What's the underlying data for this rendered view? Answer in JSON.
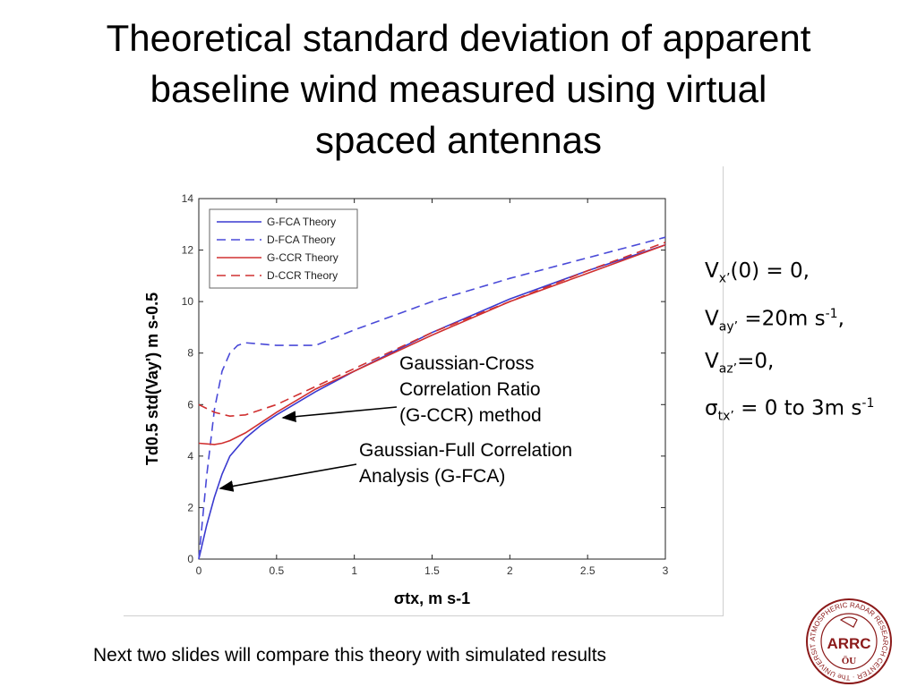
{
  "slide": {
    "title": "Theoretical standard deviation of apparent\nbaseline wind measured using virtual\nspaced antennas",
    "footnote": "Next two slides will compare this theory with simulated results"
  },
  "params": {
    "line1": {
      "base": "V",
      "sub": "x’",
      "rest": "(0) = 0,"
    },
    "line2": {
      "base": "V",
      "sub": "ay’",
      "rest": " =20m s",
      "sup": "-1",
      "tail": ","
    },
    "line3": {
      "base": "V",
      "sub": "az’",
      "rest": "=0,"
    },
    "line4": {
      "base": "σ",
      "sub": "tx’",
      "rest": " = 0 to 3m s",
      "sup": "-1"
    }
  },
  "annotations": {
    "gccr": "Gaussian-Cross\nCorrelation Ratio\n(G-CCR) method",
    "gfca": "Gaussian-Full Correlation\n Analysis (G-FCA)"
  },
  "logo": {
    "ring_text": "ATMOSPHERIC RADAR RESEARCH CENTER · The UNIVERSITY of OKLAHOMA ·",
    "center_text": "ARRC",
    "color": "#8b1a1a"
  },
  "chart_data": {
    "type": "line",
    "xlabel": "σtx, m s-1",
    "ylabel": "Td0.5 std(Vay') m s-0.5",
    "xlim": [
      0,
      3
    ],
    "ylim": [
      0,
      14
    ],
    "xticks": [
      0,
      0.5,
      1,
      1.5,
      2,
      2.5,
      3
    ],
    "xtick_labels": [
      "0",
      "0.5",
      "1",
      "1.5",
      "2",
      "2.5",
      "3"
    ],
    "yticks": [
      0,
      2,
      4,
      6,
      8,
      10,
      12,
      14
    ],
    "ytick_labels": [
      "0",
      "2",
      "4",
      "6",
      "8",
      "10",
      "12",
      "14"
    ],
    "grid": false,
    "legend_position": "top-left",
    "series": [
      {
        "name": "G-FCA Theory",
        "color": "#3a3ad0",
        "dash": "solid",
        "x": [
          0,
          0.05,
          0.1,
          0.15,
          0.2,
          0.3,
          0.4,
          0.5,
          0.75,
          1,
          1.5,
          2,
          2.5,
          3
        ],
        "y": [
          0,
          1.3,
          2.4,
          3.3,
          4.0,
          4.7,
          5.2,
          5.6,
          6.5,
          7.3,
          8.8,
          10.1,
          11.2,
          12.2
        ]
      },
      {
        "name": "D-FCA Theory",
        "color": "#4a4ad8",
        "dash": "dashed",
        "x": [
          0,
          0.05,
          0.1,
          0.15,
          0.2,
          0.25,
          0.3,
          0.4,
          0.5,
          0.75,
          1,
          1.5,
          2,
          2.5,
          3
        ],
        "y": [
          0,
          3.2,
          5.8,
          7.3,
          8.0,
          8.3,
          8.4,
          8.35,
          8.3,
          8.3,
          8.9,
          10.0,
          10.9,
          11.7,
          12.5
        ]
      },
      {
        "name": "G-CCR Theory",
        "color": "#d03030",
        "dash": "solid",
        "x": [
          0,
          0.1,
          0.15,
          0.2,
          0.3,
          0.4,
          0.5,
          0.75,
          1,
          1.5,
          2,
          2.5,
          3
        ],
        "y": [
          4.5,
          4.45,
          4.5,
          4.6,
          4.9,
          5.3,
          5.7,
          6.6,
          7.3,
          8.7,
          10.0,
          11.1,
          12.2
        ]
      },
      {
        "name": "D-CCR Theory",
        "color": "#d03030",
        "dash": "dashed",
        "x": [
          0,
          0.1,
          0.2,
          0.3,
          0.4,
          0.5,
          0.75,
          1,
          1.5,
          2,
          2.5,
          3
        ],
        "y": [
          6.0,
          5.7,
          5.55,
          5.6,
          5.8,
          6.0,
          6.7,
          7.4,
          8.8,
          10.0,
          11.2,
          12.3
        ]
      }
    ]
  }
}
